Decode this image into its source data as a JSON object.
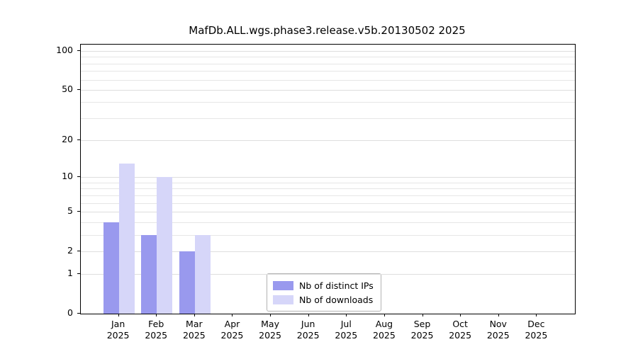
{
  "title": "MafDb.ALL.wgs.phase3.release.v5b.20130502 2025",
  "chart_data": {
    "type": "bar",
    "title": "MafDb.ALL.wgs.phase3.release.v5b.20130502 2025",
    "categories": [
      "Jan 2025",
      "Feb 2025",
      "Mar 2025",
      "Apr 2025",
      "May 2025",
      "Jun 2025",
      "Jul 2025",
      "Aug 2025",
      "Sep 2025",
      "Oct 2025",
      "Nov 2025",
      "Dec 2025"
    ],
    "month_labels": [
      "Jan",
      "Feb",
      "Mar",
      "Apr",
      "May",
      "Jun",
      "Jul",
      "Aug",
      "Sep",
      "Oct",
      "Nov",
      "Dec"
    ],
    "year_label": "2025",
    "series": [
      {
        "name": "Nb of distinct IPs",
        "color": "#9999ee",
        "values": [
          4,
          3,
          2,
          0,
          0,
          0,
          0,
          0,
          0,
          0,
          0,
          0
        ]
      },
      {
        "name": "Nb of downloads",
        "color": "#d6d6f9",
        "values": [
          13,
          10,
          3,
          0,
          0,
          0,
          0,
          0,
          0,
          0,
          0,
          0
        ]
      }
    ],
    "y_ticks": [
      0,
      1,
      2,
      5,
      10,
      20,
      50,
      100
    ],
    "y_minor_gridlines": [
      3,
      4,
      6,
      7,
      8,
      9,
      30,
      40,
      60,
      70,
      80,
      90
    ],
    "y_scale": "log1p",
    "ylim": [
      0,
      115
    ],
    "grid": true,
    "legend_position": "lower-center",
    "axis_color": "#000000",
    "grid_color": "#e6e6e6"
  }
}
